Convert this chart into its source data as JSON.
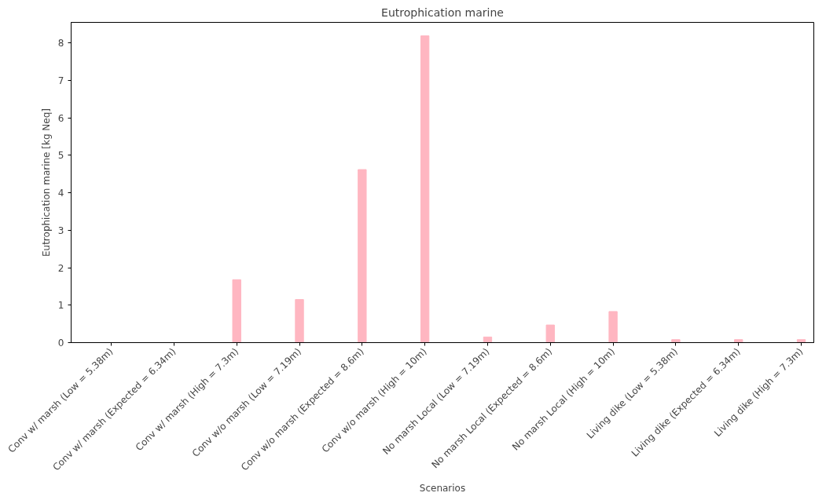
{
  "chart_data": {
    "type": "bar",
    "title": "Eutrophication marine",
    "xlabel": "Scenarios",
    "ylabel": "Eutrophication marine [kg Neq]",
    "categories": [
      "Conv w/ marsh (Low = 5.38m)",
      "Conv w/ marsh (Expected = 6.34m)",
      "Conv w/ marsh (High = 7.3m)",
      "Conv w/o marsh (Low = 7.19m)",
      "Conv w/o marsh (Expected = 8.6m)",
      "Conv w/o marsh (High = 10m)",
      "No marsh Local (Low = 7.19m)",
      "No marsh Local (Expected = 8.6m)",
      "No marsh Local (High = 10m)",
      "Living dike (Low = 5.38m)",
      "Living dike (Expected = 6.34m)",
      "Living dike (High = 7.3m)"
    ],
    "values": [
      0,
      0,
      1.68,
      1.15,
      4.62,
      8.19,
      0.15,
      0.47,
      0.83,
      0.08,
      0.08,
      0.08
    ],
    "color": "#ffb6c1",
    "ylim": [
      0,
      8.55
    ],
    "yticks": [
      0,
      1,
      2,
      3,
      4,
      5,
      6,
      7,
      8
    ],
    "grid": false
  }
}
